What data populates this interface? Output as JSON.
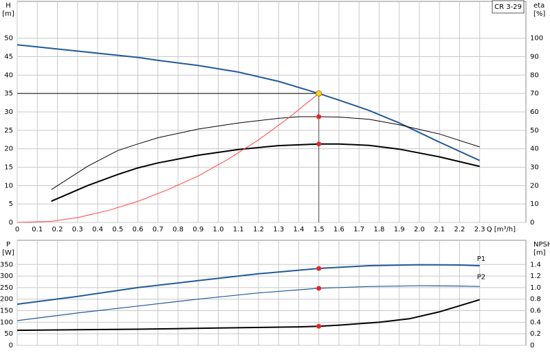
{
  "chart_data": [
    {
      "type": "line",
      "title": "CR 3-29",
      "ylabel": "H",
      "yunit": "[m]",
      "y2label": "eta",
      "y2unit": "[%]",
      "xlabel": "Q [m³/h]",
      "xlim": [
        0,
        2.53
      ],
      "xticks": [
        0,
        0.1,
        0.2,
        0.3,
        0.4,
        0.5,
        0.6,
        0.7,
        0.8,
        0.9,
        {
          "value": 1,
          "label": "1.0"
        },
        1.1,
        1.2,
        1.3,
        1.4,
        1.5,
        1.6,
        1.7,
        1.8,
        1.9,
        {
          "value": 2,
          "label": "2.0"
        },
        2.1,
        2.2,
        2.3
      ],
      "ylim": [
        0,
        60
      ],
      "yticks": [
        0,
        5,
        10,
        15,
        20,
        25,
        30,
        35,
        40,
        45,
        50
      ],
      "y2lim": [
        0,
        120
      ],
      "y2ticks": [
        0,
        10,
        20,
        30,
        40,
        50,
        60,
        70,
        80,
        90,
        100
      ],
      "grid": true,
      "duty_point": {
        "x": 1.5,
        "y": 35,
        "color": "#ffd21f"
      },
      "series": [
        {
          "color": "#1f5a9a",
          "line_width": 2,
          "x": [
            0,
            0.6,
            0.7,
            0.9,
            1.1,
            1.3,
            1.5,
            1.6,
            1.75,
            1.9,
            2.1,
            2.3
          ],
          "values": [
            48.2,
            44.8,
            44.0,
            42.6,
            40.8,
            38.3,
            35.0,
            33.2,
            30.4,
            27.0,
            21.8,
            16.8
          ]
        },
        {
          "color": "#000000",
          "line_width": 1,
          "axis": "y2",
          "marker_color": "#ee2222",
          "x": [
            0.17,
            0.35,
            0.5,
            0.6,
            0.7,
            0.9,
            1.1,
            1.3,
            1.4,
            1.5,
            1.6,
            1.75,
            1.9,
            2.1,
            2.3
          ],
          "values": [
            17.8,
            30.5,
            39,
            42.6,
            46,
            50.7,
            54,
            56.5,
            57.4,
            57.4,
            57.2,
            56,
            53,
            48,
            41
          ]
        },
        {
          "color": "#000000",
          "line_width": 2,
          "axis": "y2",
          "marker_color": "#ee2222",
          "x": [
            0.17,
            0.35,
            0.5,
            0.6,
            0.7,
            0.9,
            1.1,
            1.3,
            1.5,
            1.6,
            1.75,
            1.9,
            2.1,
            2.3
          ],
          "values": [
            11.5,
            20,
            26,
            29.6,
            32.3,
            36.5,
            39.6,
            41.7,
            42.6,
            42.6,
            41.8,
            39.8,
            35.6,
            30.4
          ]
        },
        {
          "color": "#ff4444",
          "line_width": 1,
          "x": [
            0,
            0.17,
            0.3,
            0.45,
            0.6,
            0.75,
            0.9,
            1.05,
            1.2,
            1.35,
            1.5
          ],
          "values": [
            0,
            0.3,
            1.3,
            3.2,
            5.7,
            8.9,
            12.6,
            17.2,
            22.4,
            28.4,
            35
          ]
        }
      ]
    },
    {
      "type": "line",
      "ylabel": "P",
      "yunit": "[W]",
      "y2label": "NPSH",
      "y2unit": "[m]",
      "ylim": [
        0,
        455
      ],
      "yticks": [
        0,
        50,
        100,
        150,
        200,
        250,
        300,
        350
      ],
      "y2lim": [
        0,
        1.82
      ],
      "y2ticks": [
        0,
        0.2,
        0.4,
        0.6,
        0.8,
        {
          "value": 1,
          "label": "1.0"
        },
        1.2,
        1.4
      ],
      "grid": true,
      "series": [
        {
          "name": "P1",
          "color": "#1f5a9a",
          "line_width": 2,
          "marker_color": "#ee2222",
          "x": [
            0,
            0.3,
            0.6,
            0.9,
            1.2,
            1.5,
            1.75,
            2.0,
            2.2,
            2.3
          ],
          "values": [
            178,
            212,
            250,
            280,
            310,
            333,
            345,
            349,
            348,
            345
          ]
        },
        {
          "name": "P2",
          "color": "#1f5a9a",
          "line_width": 1.2,
          "marker_color": "#ee2222",
          "x": [
            0,
            0.3,
            0.6,
            0.9,
            1.2,
            1.5,
            1.75,
            2.0,
            2.2,
            2.3
          ],
          "values": [
            107,
            140,
            170,
            200,
            227,
            247,
            255,
            258,
            257,
            255
          ]
        },
        {
          "color": "#000000",
          "line_width": 2,
          "axis": "y2",
          "marker_color": "#ee2222",
          "x": [
            0,
            0.6,
            1.0,
            1.4,
            1.5,
            1.6,
            1.8,
            1.95,
            2.1,
            2.3
          ],
          "values": [
            0.26,
            0.28,
            0.3,
            0.32,
            0.33,
            0.35,
            0.4,
            0.46,
            0.58,
            0.79
          ]
        }
      ]
    }
  ]
}
